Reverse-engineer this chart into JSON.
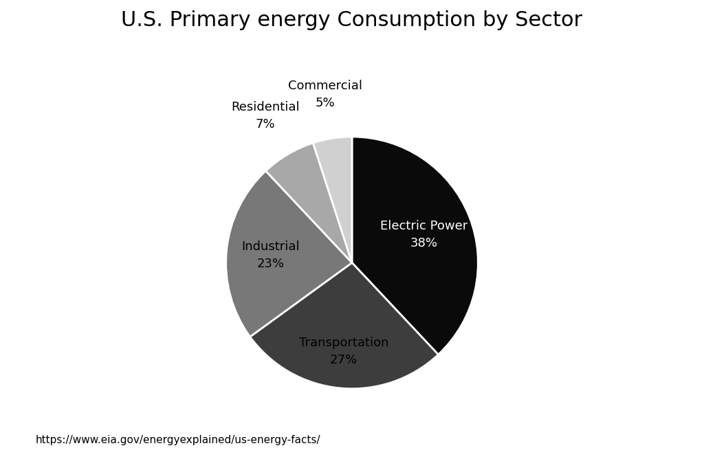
{
  "title": "U.S. Primary energy Consumption by Sector",
  "sectors": [
    "Electric Power",
    "Transportation",
    "Industrial",
    "Residential",
    "Commercial"
  ],
  "values": [
    38,
    27,
    23,
    7,
    5
  ],
  "colors": [
    "#0a0a0a",
    "#3d3d3d",
    "#787878",
    "#a8a8a8",
    "#d0d0d0"
  ],
  "label_colors": [
    "white",
    "black",
    "black",
    "black",
    "black"
  ],
  "startangle": 90,
  "source": "https://www.eia.gov/energyexplained/us-energy-facts/",
  "background_color": "#ffffff",
  "title_fontsize": 22,
  "label_fontsize": 13,
  "source_fontsize": 11
}
